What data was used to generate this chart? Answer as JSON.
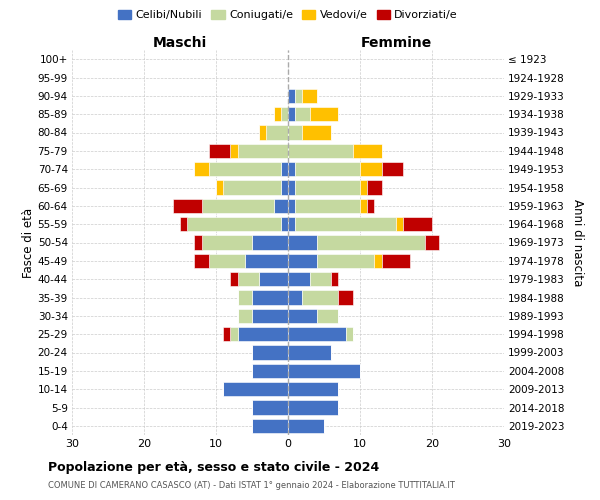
{
  "age_groups": [
    "0-4",
    "5-9",
    "10-14",
    "15-19",
    "20-24",
    "25-29",
    "30-34",
    "35-39",
    "40-44",
    "45-49",
    "50-54",
    "55-59",
    "60-64",
    "65-69",
    "70-74",
    "75-79",
    "80-84",
    "85-89",
    "90-94",
    "95-99",
    "100+"
  ],
  "birth_years": [
    "2019-2023",
    "2014-2018",
    "2009-2013",
    "2004-2008",
    "1999-2003",
    "1994-1998",
    "1989-1993",
    "1984-1988",
    "1979-1983",
    "1974-1978",
    "1969-1973",
    "1964-1968",
    "1959-1963",
    "1954-1958",
    "1949-1953",
    "1944-1948",
    "1939-1943",
    "1934-1938",
    "1929-1933",
    "1924-1928",
    "≤ 1923"
  ],
  "colors": {
    "celibi": "#4472c4",
    "coniugati": "#c5d9a0",
    "vedovi": "#ffc000",
    "divorziati": "#c00000"
  },
  "males": {
    "celibi": [
      5,
      5,
      9,
      5,
      5,
      7,
      5,
      5,
      4,
      6,
      5,
      1,
      2,
      1,
      1,
      0,
      0,
      0,
      0,
      0,
      0
    ],
    "coniugati": [
      0,
      0,
      0,
      0,
      0,
      1,
      2,
      2,
      3,
      5,
      7,
      13,
      10,
      8,
      10,
      7,
      3,
      1,
      0,
      0,
      0
    ],
    "vedovi": [
      0,
      0,
      0,
      0,
      0,
      0,
      0,
      0,
      0,
      0,
      0,
      0,
      0,
      1,
      2,
      1,
      1,
      1,
      0,
      0,
      0
    ],
    "divorziati": [
      0,
      0,
      0,
      0,
      0,
      1,
      0,
      0,
      1,
      2,
      1,
      1,
      4,
      0,
      0,
      3,
      0,
      0,
      0,
      0,
      0
    ]
  },
  "females": {
    "celibi": [
      5,
      7,
      7,
      10,
      6,
      8,
      4,
      2,
      3,
      4,
      4,
      1,
      1,
      1,
      1,
      0,
      0,
      1,
      1,
      0,
      0
    ],
    "coniugati": [
      0,
      0,
      0,
      0,
      0,
      1,
      3,
      5,
      3,
      8,
      15,
      14,
      9,
      9,
      9,
      9,
      2,
      2,
      1,
      0,
      0
    ],
    "vedovi": [
      0,
      0,
      0,
      0,
      0,
      0,
      0,
      0,
      0,
      1,
      0,
      1,
      1,
      1,
      3,
      4,
      4,
      4,
      2,
      0,
      0
    ],
    "divorziati": [
      0,
      0,
      0,
      0,
      0,
      0,
      0,
      2,
      1,
      4,
      2,
      4,
      1,
      2,
      3,
      0,
      0,
      0,
      0,
      0,
      0
    ]
  },
  "xlim": 30,
  "title": "Popolazione per età, sesso e stato civile - 2024",
  "subtitle": "COMUNE DI CAMERANO CASASCO (AT) - Dati ISTAT 1° gennaio 2024 - Elaborazione TUTTITALIA.IT",
  "ylabel_left": "Fasce di età",
  "ylabel_right": "Anni di nascita",
  "xlabel_left": "Maschi",
  "xlabel_right": "Femmine",
  "legend_labels": [
    "Celibi/Nubili",
    "Coniugati/e",
    "Vedovi/e",
    "Divorziati/e"
  ],
  "xtick_labels": [
    "30",
    "20",
    "10",
    "0",
    "10",
    "20",
    "30"
  ],
  "xtick_vals": [
    -30,
    -20,
    -10,
    0,
    10,
    20,
    30
  ]
}
